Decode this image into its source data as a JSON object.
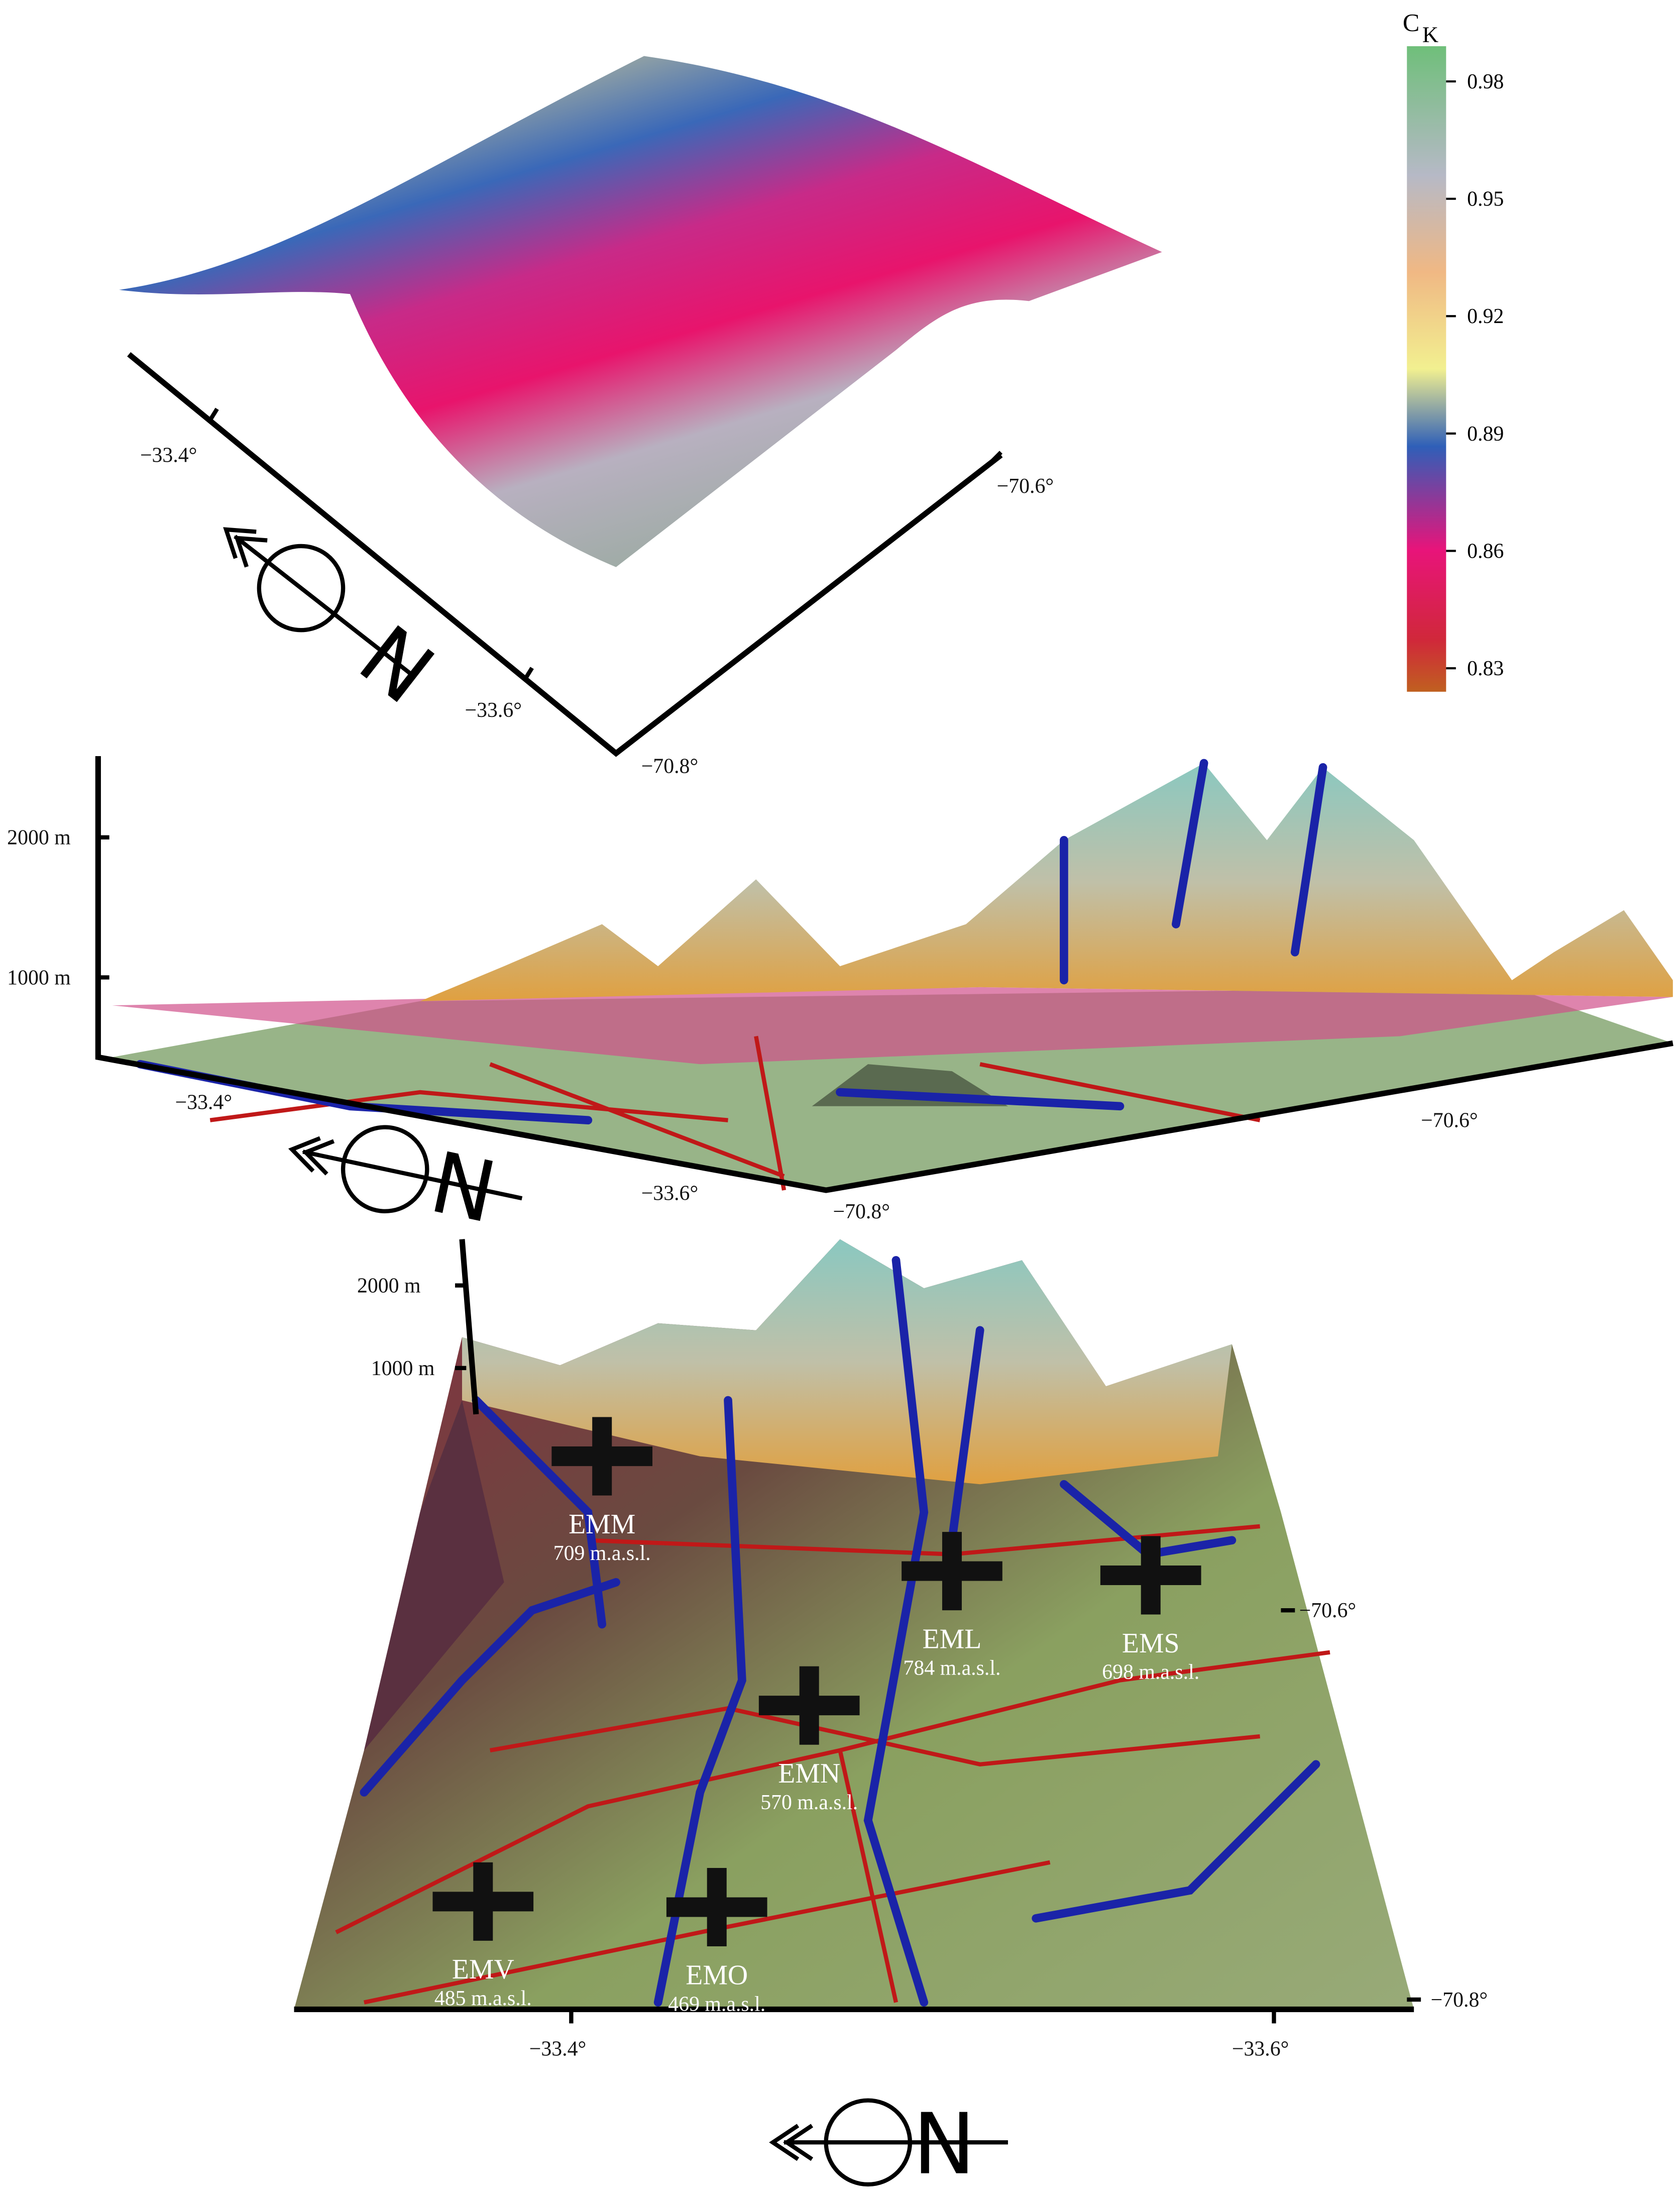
{
  "colorbar": {
    "title": "C",
    "subscript": "K",
    "ticks": [
      0.98,
      0.95,
      0.92,
      0.89,
      0.86,
      0.83
    ],
    "range": [
      0.824,
      0.989
    ]
  },
  "panel_top": {
    "axis_labels": [
      "−33.4°",
      "−33.6°",
      "−70.6°",
      "−70.8°"
    ],
    "north": "N"
  },
  "panel_middle": {
    "z_ticks": [
      "2000 m",
      "1000 m"
    ],
    "axis_labels": [
      "−33.4°",
      "−33.6°",
      "−70.6°",
      "−70.8°"
    ],
    "north": "N"
  },
  "panel_bottom": {
    "z_ticks": [
      "2000 m",
      "1000 m"
    ],
    "axis_labels": [
      "−70.6°",
      "−70.8°",
      "−33.4°",
      "−33.6°"
    ],
    "north": "N",
    "stations": [
      {
        "name": "EMM",
        "elevation": "709 m.a.s.l."
      },
      {
        "name": "EML",
        "elevation": "784 m.a.s.l."
      },
      {
        "name": "EMS",
        "elevation": "698 m.a.s.l."
      },
      {
        "name": "EMN",
        "elevation": "570 m.a.s.l."
      },
      {
        "name": "EMV",
        "elevation": "485 m.a.s.l."
      },
      {
        "name": "EMO",
        "elevation": "469 m.a.s.l."
      }
    ]
  }
}
